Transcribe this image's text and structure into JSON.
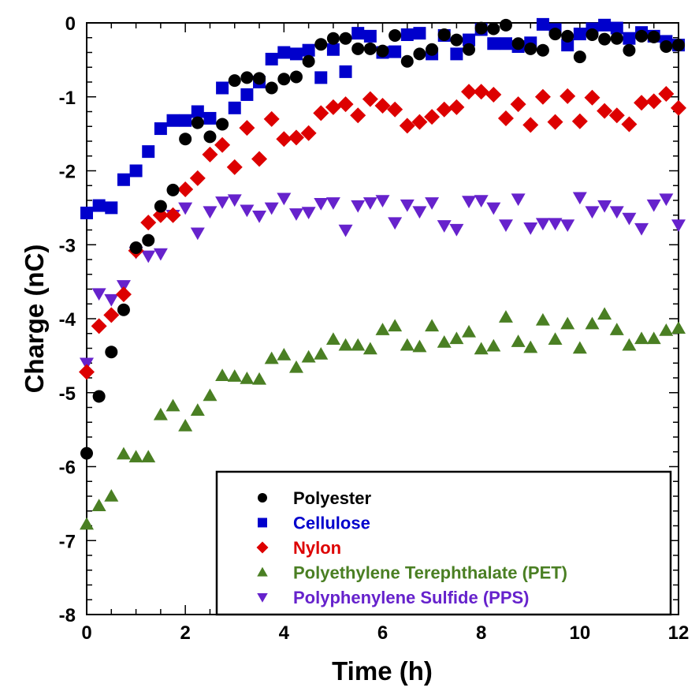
{
  "chart_data": {
    "type": "scatter",
    "title": "",
    "xlabel": "Time (h)",
    "ylabel": "Charge (nC)",
    "xlim": [
      0,
      12
    ],
    "ylim": [
      -8,
      0
    ],
    "xticks": [
      0,
      2,
      4,
      6,
      8,
      10,
      12
    ],
    "xtick_labels": [
      "0",
      "2",
      "4",
      "6",
      "8",
      "10",
      "12"
    ],
    "yticks": [
      0,
      -1,
      -2,
      -3,
      -4,
      -5,
      -6,
      -7,
      -8
    ],
    "ytick_labels": [
      "0",
      "-1",
      "-2",
      "-3",
      "-4",
      "-5",
      "-6",
      "-7",
      "-8"
    ],
    "x_minor_step": 0.5,
    "y_minor_step": 0.2,
    "grid": false,
    "legend_position": "bottom-right",
    "x": [
      0,
      0.25,
      0.5,
      0.75,
      1,
      1.25,
      1.5,
      1.75,
      2,
      2.25,
      2.5,
      2.75,
      3,
      3.25,
      3.5,
      3.75,
      4,
      4.25,
      4.5,
      4.75,
      5,
      5.25,
      5.5,
      5.75,
      6,
      6.25,
      6.5,
      6.75,
      7,
      7.25,
      7.5,
      7.75,
      8,
      8.25,
      8.5,
      8.75,
      9,
      9.25,
      9.5,
      9.75,
      10,
      10.25,
      10.5,
      10.75,
      11,
      11.25,
      11.5,
      11.75,
      12
    ],
    "series": [
      {
        "name": "Polyester",
        "marker": "circle",
        "color": "#000000",
        "values": [
          -5.82,
          -5.05,
          -4.45,
          -3.88,
          -3.04,
          -2.94,
          -2.48,
          -2.26,
          -1.57,
          -1.35,
          -1.54,
          -1.37,
          -0.78,
          -0.74,
          -0.75,
          -0.88,
          -0.76,
          -0.73,
          -0.52,
          -0.29,
          -0.21,
          -0.21,
          -0.35,
          -0.35,
          -0.38,
          -0.17,
          -0.52,
          -0.42,
          -0.36,
          -0.16,
          -0.23,
          -0.36,
          -0.07,
          -0.08,
          -0.03,
          -0.28,
          -0.35,
          -0.37,
          -0.15,
          -0.18,
          -0.46,
          -0.16,
          -0.22,
          -0.21,
          -0.37,
          -0.18,
          -0.19,
          -0.32,
          -0.3
        ]
      },
      {
        "name": "Cellulose",
        "color": "#0000cc",
        "marker": "square",
        "values": [
          -2.57,
          -2.47,
          -2.5,
          -2.12,
          -2.0,
          -1.74,
          -1.43,
          -1.32,
          -1.32,
          -1.2,
          -1.29,
          -0.88,
          -1.15,
          -0.97,
          -0.8,
          -0.49,
          -0.4,
          -0.42,
          -0.37,
          -0.74,
          -0.36,
          -0.66,
          -0.14,
          -0.18,
          -0.4,
          -0.39,
          -0.16,
          -0.14,
          -0.42,
          -0.17,
          -0.42,
          -0.23,
          -0.09,
          -0.28,
          -0.28,
          -0.32,
          -0.27,
          -0.02,
          -0.09,
          -0.3,
          -0.15,
          -0.08,
          -0.03,
          -0.07,
          -0.21,
          -0.13,
          -0.18,
          -0.25,
          -0.3
        ]
      },
      {
        "name": "Nylon",
        "color": "#dd0000",
        "marker": "diamond",
        "values": [
          -4.72,
          -4.1,
          -3.95,
          -3.67,
          -3.08,
          -2.7,
          -2.6,
          -2.6,
          -2.25,
          -2.1,
          -1.78,
          -1.65,
          -1.95,
          -1.42,
          -1.84,
          -1.3,
          -1.57,
          -1.55,
          -1.49,
          -1.22,
          -1.14,
          -1.1,
          -1.25,
          -1.03,
          -1.12,
          -1.17,
          -1.39,
          -1.34,
          -1.27,
          -1.17,
          -1.14,
          -0.93,
          -0.93,
          -0.97,
          -1.29,
          -1.1,
          -1.38,
          -1.0,
          -1.34,
          -0.99,
          -1.33,
          -1.01,
          -1.19,
          -1.25,
          -1.37,
          -1.08,
          -1.06,
          -0.96,
          -1.15
        ]
      },
      {
        "name": "Polyethylene Terephthalate (PET)",
        "color": "#4a7f23",
        "marker": "triangle-up",
        "values": [
          -6.78,
          -6.53,
          -6.4,
          -5.83,
          -5.87,
          -5.87,
          -5.3,
          -5.18,
          -5.45,
          -5.24,
          -5.04,
          -4.77,
          -4.78,
          -4.81,
          -4.82,
          -4.54,
          -4.49,
          -4.66,
          -4.52,
          -4.48,
          -4.28,
          -4.36,
          -4.36,
          -4.41,
          -4.15,
          -4.1,
          -4.36,
          -4.38,
          -4.1,
          -4.32,
          -4.27,
          -4.18,
          -4.41,
          -4.37,
          -3.98,
          -4.31,
          -4.39,
          -4.02,
          -4.28,
          -4.07,
          -4.4,
          -4.07,
          -3.94,
          -4.15,
          -4.36,
          -4.27,
          -4.27,
          -4.16,
          -4.13
        ]
      },
      {
        "name": "Polyphenylene Sulfide (PPS)",
        "color": "#6622cc",
        "marker": "triangle-down",
        "values": [
          -4.6,
          -3.66,
          -3.74,
          -3.55,
          -3.1,
          -3.15,
          -3.12,
          -2.6,
          -2.5,
          -2.84,
          -2.55,
          -2.42,
          -2.39,
          -2.53,
          -2.61,
          -2.5,
          -2.37,
          -2.58,
          -2.56,
          -2.44,
          -2.43,
          -2.8,
          -2.47,
          -2.43,
          -2.4,
          -2.7,
          -2.46,
          -2.55,
          -2.43,
          -2.74,
          -2.79,
          -2.41,
          -2.4,
          -2.5,
          -2.73,
          -2.38,
          -2.77,
          -2.71,
          -2.71,
          -2.73,
          -2.36,
          -2.55,
          -2.47,
          -2.55,
          -2.64,
          -2.78,
          -2.46,
          -2.38,
          -2.73
        ]
      }
    ]
  }
}
